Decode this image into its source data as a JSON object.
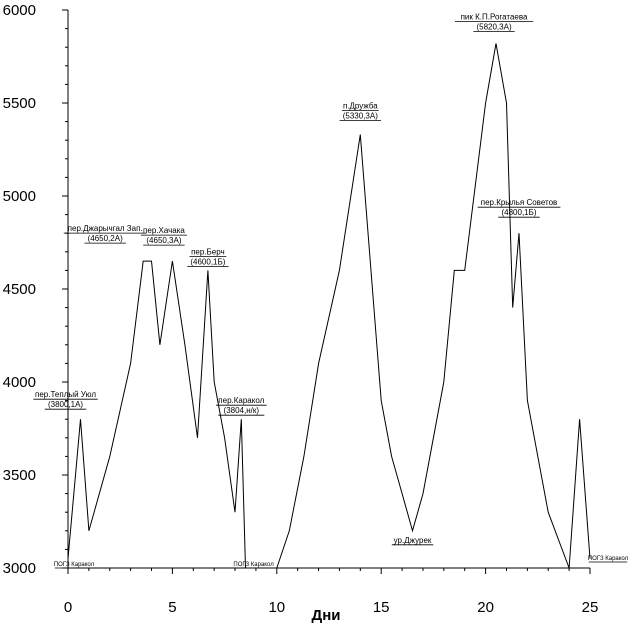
{
  "chart_data": {
    "type": "line",
    "xlabel": "Дни",
    "ylabel": "",
    "xlim": [
      0,
      25
    ],
    "ylim": [
      3000,
      6000
    ],
    "xticks": [
      0,
      5,
      10,
      15,
      20,
      25
    ],
    "yticks": [
      3000,
      3500,
      4000,
      4500,
      5000,
      5500,
      6000
    ],
    "grid": false,
    "series": [
      {
        "x": [
          0,
          0.6,
          1,
          2,
          3,
          3.6,
          4,
          4.4,
          5,
          5.6,
          6.2,
          6.7,
          7,
          7.5,
          8,
          8.3,
          8.5,
          8.6,
          10,
          10.6,
          11.3,
          12,
          13,
          14,
          15,
          15.5,
          16,
          16.5,
          17,
          18,
          18.5,
          19,
          20,
          20.5,
          21,
          21.3,
          21.6,
          22,
          23,
          24,
          24.5,
          25
        ],
        "y": [
          3050,
          3800,
          3200,
          3600,
          4100,
          4650,
          4650,
          4200,
          4650,
          4200,
          3700,
          4600,
          4000,
          3700,
          3300,
          3800,
          3000,
          3000,
          3000,
          3200,
          3600,
          4100,
          4600,
          5330,
          3900,
          3600,
          3400,
          3200,
          3400,
          4000,
          4600,
          4600,
          5500,
          5820,
          5500,
          4400,
          4800,
          3900,
          3300,
          3000,
          3800,
          3050
        ]
      }
    ],
    "annotations": [
      {
        "line1": "пер.Теплый Уюл",
        "line2": "(3800,1А)",
        "x": 0.6,
        "y": 3800
      },
      {
        "line1": "пер.Джарычгал Зап.",
        "line2": "(4650,2А)",
        "x": 3.6,
        "y": 4650
      },
      {
        "line1": "пер.Хачака",
        "line2": "(4650,3А)",
        "x": 4.5,
        "y": 4650
      },
      {
        "line1": "пер.Берч",
        "line2": "(4600,1Б)",
        "x": 6.7,
        "y": 4600
      },
      {
        "line1": "пер.Каракол",
        "line2": "(3804,н/к)",
        "x": 8.3,
        "y": 3800
      },
      {
        "line1": "п.Дружба",
        "line2": "(5330,3А)",
        "x": 14,
        "y": 5330
      },
      {
        "line1": "пик К.П.Рогатаева",
        "line2": "(5820,3А)",
        "x": 20.5,
        "y": 5820
      },
      {
        "line1": "пер.Крылья Советов",
        "line2": "(4800,1Б)",
        "x": 21.6,
        "y": 4800
      },
      {
        "line1": "ур.Джурек",
        "line2": "",
        "x": 16.5,
        "y": 3200
      }
    ],
    "small_labels": [
      {
        "text": "ПОГЗ Каракол",
        "x": 0,
        "y": 3000
      },
      {
        "text": "ПОГЗ Каракол",
        "x": 8.6,
        "y": 3000
      },
      {
        "text": "ПОГЗ Каракол",
        "x": 25,
        "y": 3000
      }
    ]
  }
}
